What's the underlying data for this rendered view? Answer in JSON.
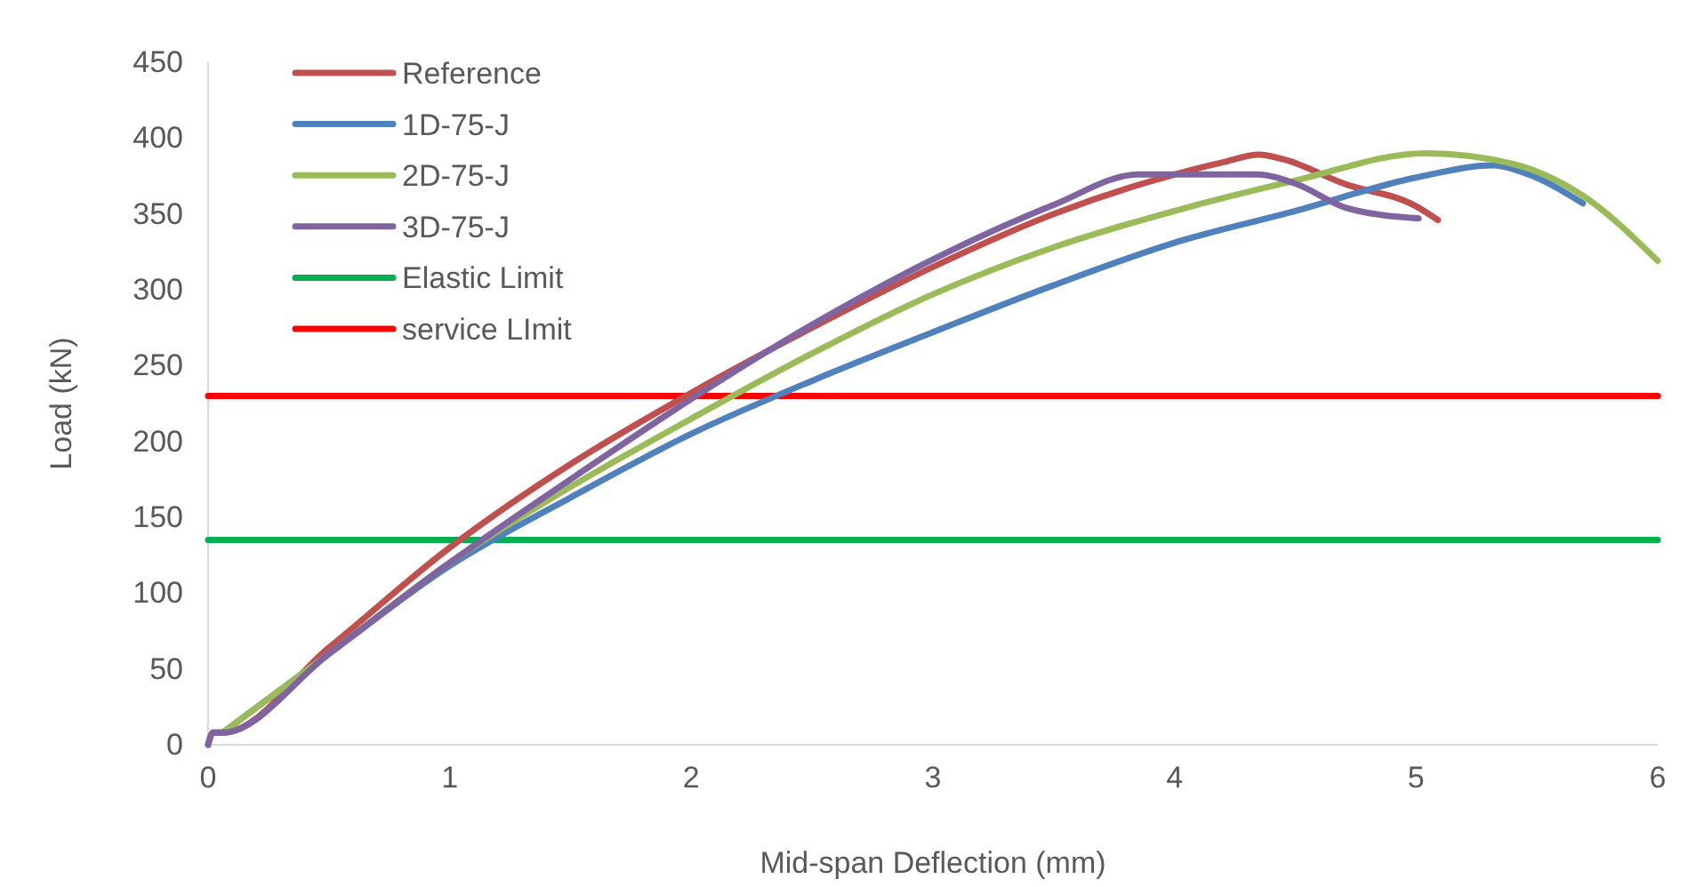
{
  "chart_data": {
    "type": "line",
    "xlabel": "Mid-span Deflection (mm)",
    "ylabel": "Load (kN)",
    "xlim": [
      0,
      6
    ],
    "xticks": [
      0,
      1,
      2,
      3,
      4,
      5,
      6
    ],
    "ylim": [
      0,
      450
    ],
    "yticks": [
      0,
      50,
      100,
      150,
      200,
      250,
      300,
      350,
      400,
      450
    ],
    "grid": false,
    "legend": "top left",
    "marker": "none",
    "line_style": "solid",
    "series": [
      {
        "name": "Reference",
        "color": "#c0504d",
        "x": [
          0,
          0.02,
          0.06,
          0.5,
          1,
          1.5,
          2,
          2.5,
          3,
          3.5,
          4,
          4.2,
          4.35,
          4.45,
          4.7,
          5,
          5.09
        ],
        "values": [
          0,
          8,
          8,
          64,
          130,
          185,
          232,
          275,
          315,
          350,
          376,
          384,
          389,
          386,
          370,
          355,
          346
        ]
      },
      {
        "name": "1D-75-J",
        "color": "#4f81bd",
        "x": [
          0.06,
          0.5,
          1,
          1.5,
          2,
          2.5,
          3,
          3.5,
          4,
          4.5,
          5,
          5.32,
          5.45,
          5.69
        ],
        "values": [
          8,
          60,
          118,
          163,
          205,
          240,
          272,
          303,
          331,
          352,
          374,
          382,
          377,
          357
        ]
      },
      {
        "name": "2D-75-J",
        "color": "#9bbb59",
        "x": [
          0.06,
          0.5,
          1,
          1.5,
          2,
          2.5,
          3,
          3.5,
          4,
          4.5,
          5.04,
          5.4,
          5.69,
          6
        ],
        "values": [
          8,
          60,
          120,
          170,
          215,
          258,
          297,
          328,
          352,
          372,
          390,
          383,
          362,
          319
        ]
      },
      {
        "name": "3D-75-J",
        "color": "#8064a2",
        "x": [
          0,
          0.02,
          0.06,
          0.5,
          1,
          1.5,
          2,
          2.5,
          3,
          3.5,
          3.85,
          4.34,
          4.5,
          4.71,
          5.01
        ],
        "values": [
          0,
          8,
          8,
          60,
          120,
          175,
          228,
          277,
          320,
          356,
          376,
          376,
          370,
          354,
          347
        ]
      },
      {
        "name": "Elastic Limit",
        "color": "#00b050",
        "x": [
          0,
          6
        ],
        "values": [
          135,
          135
        ]
      },
      {
        "name": "service LImit",
        "color": "#ff0000",
        "x": [
          0,
          6
        ],
        "values": [
          230,
          230
        ]
      }
    ]
  }
}
